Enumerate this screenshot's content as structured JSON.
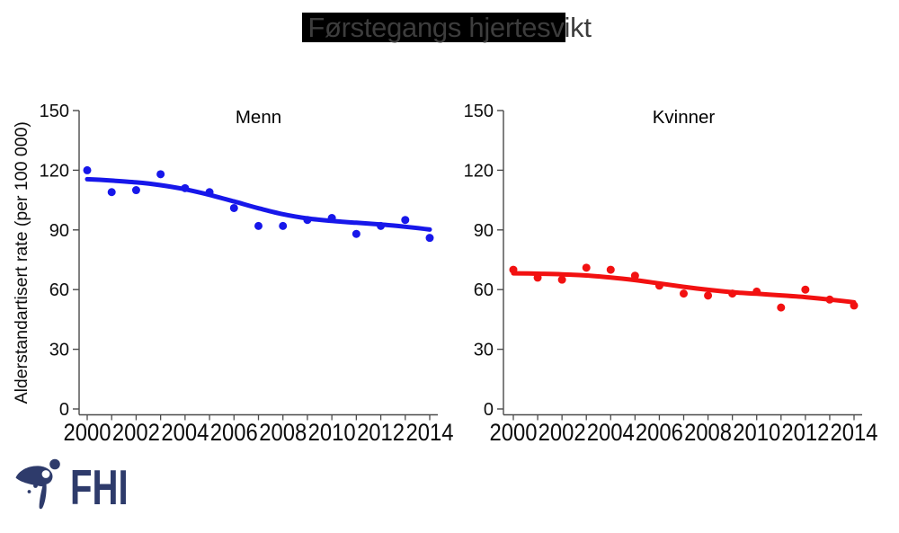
{
  "title": "Førstegangs hjertesvikt",
  "logo": {
    "text": "FHI",
    "color": "#2e3b6b"
  },
  "colors": {
    "men_blue": "#1717ea",
    "women_red": "#f21111",
    "title_text": "#3d3d3d",
    "title_highlight": "#000000",
    "axis": "#4a4a4a",
    "tick_label": "#0d0d0d"
  },
  "chart_data": [
    {
      "type": "scatter",
      "panel": "left",
      "title": "Menn",
      "xlabel": "",
      "ylabel": "Alderstandartisert rate (per 100 000)",
      "x": [
        2000,
        2001,
        2002,
        2003,
        2004,
        2005,
        2006,
        2007,
        2008,
        2009,
        2010,
        2011,
        2012,
        2013,
        2014
      ],
      "xtick_labels": [
        "2000",
        "2002",
        "2004",
        "2006",
        "2008",
        "2010",
        "2012",
        "2014"
      ],
      "yticks": [
        0,
        30,
        60,
        90,
        120,
        150
      ],
      "ylim": [
        0,
        150
      ],
      "grid": false,
      "legend": "none",
      "color": "#1717ea",
      "series": [
        {
          "style": "points",
          "values": [
            120,
            109,
            110,
            118,
            111,
            109,
            101,
            92,
            92,
            95,
            96,
            88,
            92,
            95,
            86
          ]
        },
        {
          "style": "smooth-trend-line",
          "values": [
            115.5,
            114.8,
            113.9,
            112.5,
            110.4,
            107.6,
            104.3,
            100.9,
            97.9,
            95.8,
            94.5,
            93.6,
            92.7,
            91.6,
            90.2
          ]
        }
      ]
    },
    {
      "type": "scatter",
      "panel": "right",
      "title": "Kvinner",
      "xlabel": "",
      "ylabel": "",
      "x": [
        2000,
        2001,
        2002,
        2003,
        2004,
        2005,
        2006,
        2007,
        2008,
        2009,
        2010,
        2011,
        2012,
        2013,
        2014
      ],
      "xtick_labels": [
        "2000",
        "2002",
        "2004",
        "2006",
        "2008",
        "2010",
        "2012",
        "2014"
      ],
      "yticks": [
        0,
        30,
        60,
        90,
        120,
        150
      ],
      "ylim": [
        0,
        150
      ],
      "grid": false,
      "legend": "none",
      "color": "#f21111",
      "series": [
        {
          "style": "points",
          "values": [
            70,
            66,
            65,
            71,
            70,
            67,
            62,
            58,
            57,
            58,
            59,
            51,
            60,
            55,
            52
          ]
        },
        {
          "style": "smooth-trend-line",
          "values": [
            68.2,
            68.0,
            67.7,
            67.1,
            66.1,
            64.8,
            63.1,
            61.4,
            59.9,
            58.7,
            57.9,
            57.1,
            56.2,
            55.0,
            53.6
          ]
        }
      ]
    }
  ]
}
